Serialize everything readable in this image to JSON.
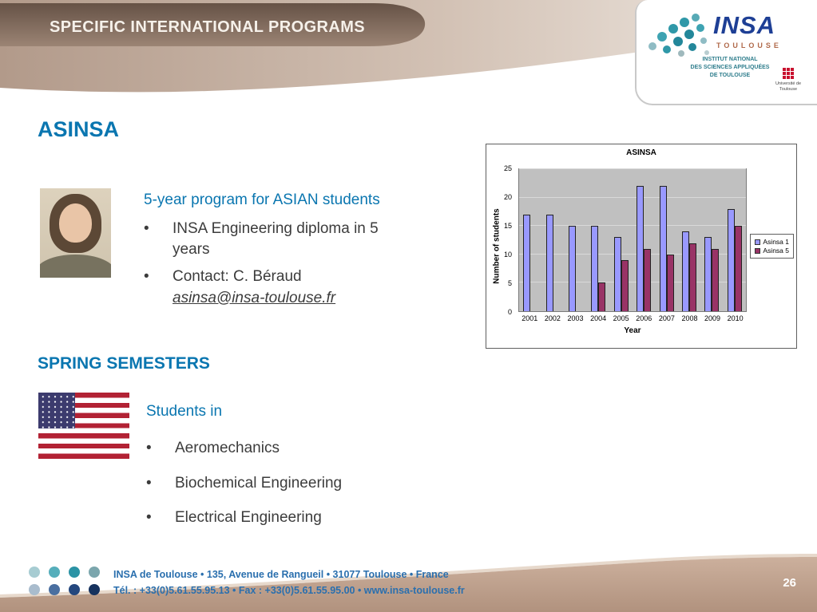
{
  "header": {
    "title": "SPECIFIC INTERNATIONAL PROGRAMS"
  },
  "logo": {
    "brand": "INSA",
    "city": "TOULOUSE",
    "line1": "INSTITUT NATIONAL",
    "line2": "DES SCIENCES APPLIQUÉES",
    "line3": "DE TOULOUSE",
    "partner": "Université de Toulouse"
  },
  "asinsa": {
    "title": "ASINSA",
    "heading": "5-year program for ASIAN students",
    "bullet1": "INSA Engineering diploma in 5 years",
    "bullet2_text": "Contact: C. Béraud",
    "bullet2_email": "asinsa@insa-toulouse.fr"
  },
  "spring": {
    "title": "SPRING SEMESTERS",
    "heading": "Students in",
    "bullets": [
      "Aeromechanics",
      "Biochemical Engineering",
      "Electrical Engineering"
    ]
  },
  "footer": {
    "address": "INSA de Toulouse • 135, Avenue de Rangueil • 31077 Toulouse • France",
    "contact": "Tél. : +33(0)5.61.55.95.13 • Fax : +33(0)5.61.55.95.00 • www.insa-toulouse.fr",
    "page": "26"
  },
  "chart_data": {
    "type": "bar",
    "title": "ASINSA",
    "categories": [
      "2001",
      "2002",
      "2003",
      "2004",
      "2005",
      "2006",
      "2007",
      "2008",
      "2009",
      "2010"
    ],
    "series": [
      {
        "name": "Asinsa 1",
        "color": "#9999ff",
        "values": [
          17,
          17,
          15,
          15,
          13,
          22,
          22,
          14,
          13,
          18
        ]
      },
      {
        "name": "Asinsa 5",
        "color": "#993366",
        "values": [
          0,
          0,
          0,
          5,
          9,
          11,
          10,
          12,
          11,
          15
        ]
      }
    ],
    "xlabel": "Year",
    "ylabel": "Number of students",
    "ylim": [
      0,
      25
    ],
    "yticks": [
      0,
      5,
      10,
      15,
      20,
      25
    ],
    "legend_position": "right",
    "plot_background": "#c0c0c0",
    "grid": true
  }
}
